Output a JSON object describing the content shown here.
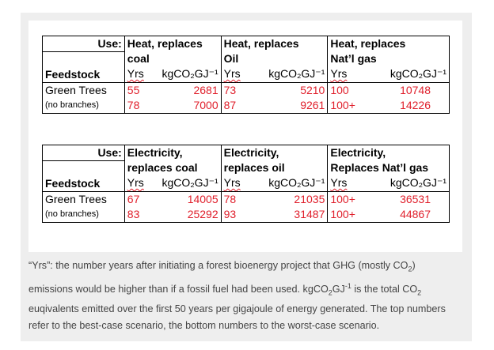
{
  "table_heat": {
    "use_label": "Use:",
    "feedstock_label": "Feedstock",
    "yrs_label": "Yrs",
    "unit_label": "kgCO₂GJ⁻¹",
    "columns": [
      {
        "line1": "Heat, replaces",
        "line2": "coal"
      },
      {
        "line1": "Heat, replaces",
        "line2": "Oil"
      },
      {
        "line1": "Heat, replaces",
        "line2": "Nat’l gas"
      }
    ],
    "row_label": "Green Trees",
    "row_sublabel": "(no branches)",
    "best": [
      {
        "yrs": "55",
        "kg": "2681"
      },
      {
        "yrs": "73",
        "kg": "5210"
      },
      {
        "yrs": "100",
        "kg": "10748"
      }
    ],
    "worst": [
      {
        "yrs": "78",
        "kg": "7000"
      },
      {
        "yrs": "87",
        "kg": "9261"
      },
      {
        "yrs": "100+",
        "kg": "14226"
      }
    ]
  },
  "table_elec": {
    "use_label": "Use:",
    "feedstock_label": "Feedstock",
    "yrs_label": "Yrs",
    "unit_label": "kgCO₂GJ⁻¹",
    "columns": [
      {
        "line1": "Electricity,",
        "line2": "replaces coal"
      },
      {
        "line1": "Electricity,",
        "line2": "replaces oil"
      },
      {
        "line1": "Electricity,",
        "line2": "Replaces Nat’l gas"
      }
    ],
    "row_label": "Green Trees",
    "row_sublabel": "(no branches)",
    "best": [
      {
        "yrs": "67",
        "kg": "14005"
      },
      {
        "yrs": "78",
        "kg": "21035"
      },
      {
        "yrs": "100+",
        "kg": "36531"
      }
    ],
    "worst": [
      {
        "yrs": "83",
        "kg": "25292"
      },
      {
        "yrs": "93",
        "kg": "31487"
      },
      {
        "yrs": "100+",
        "kg": "44867"
      }
    ]
  },
  "caption": {
    "part1": "“Yrs”: the number years after initiating a forest bioenergy project that GHG (mostly CO",
    "sub1": "2",
    "part2": ") emissions would be higher than if a fossil fuel had been used. kgCO",
    "sub2": "2",
    "part3": "GJ",
    "sup1": "-1",
    "part4": " is the total CO",
    "sub3": "2",
    "part5": " euqivalents emitted over the first 50 years per gigajoule of energy generated. The top numbers refer to the best-case scenario, the bottom numbers to the worst-case scenario."
  }
}
